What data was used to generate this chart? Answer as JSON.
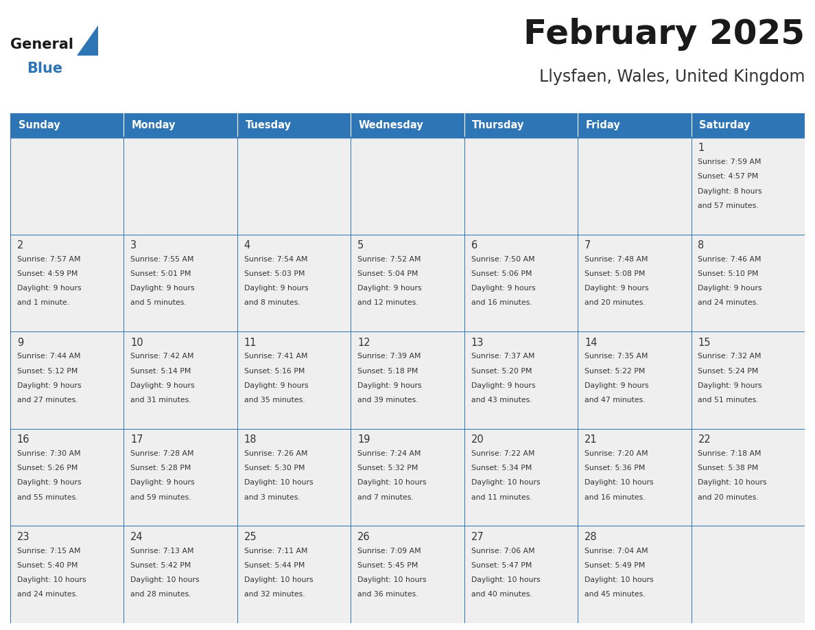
{
  "title": "February 2025",
  "subtitle": "Llysfaen, Wales, United Kingdom",
  "days_of_week": [
    "Sunday",
    "Monday",
    "Tuesday",
    "Wednesday",
    "Thursday",
    "Friday",
    "Saturday"
  ],
  "header_bg": "#2E75B6",
  "header_text": "#FFFFFF",
  "cell_bg_light": "#EFEFEF",
  "cell_bg_white": "#FFFFFF",
  "border_color": "#2E75B6",
  "text_color": "#333333",
  "title_color": "#1a1a1a",
  "subtitle_color": "#333333",
  "logo_general_color": "#1a1a1a",
  "logo_blue_color": "#2E75B6",
  "calendar_data": [
    [
      null,
      null,
      null,
      null,
      null,
      null,
      {
        "day": 1,
        "sunrise": "7:59 AM",
        "sunset": "4:57 PM",
        "daylight": "8 hours",
        "daylight2": "and 57 minutes."
      }
    ],
    [
      {
        "day": 2,
        "sunrise": "7:57 AM",
        "sunset": "4:59 PM",
        "daylight": "9 hours",
        "daylight2": "and 1 minute."
      },
      {
        "day": 3,
        "sunrise": "7:55 AM",
        "sunset": "5:01 PM",
        "daylight": "9 hours",
        "daylight2": "and 5 minutes."
      },
      {
        "day": 4,
        "sunrise": "7:54 AM",
        "sunset": "5:03 PM",
        "daylight": "9 hours",
        "daylight2": "and 8 minutes."
      },
      {
        "day": 5,
        "sunrise": "7:52 AM",
        "sunset": "5:04 PM",
        "daylight": "9 hours",
        "daylight2": "and 12 minutes."
      },
      {
        "day": 6,
        "sunrise": "7:50 AM",
        "sunset": "5:06 PM",
        "daylight": "9 hours",
        "daylight2": "and 16 minutes."
      },
      {
        "day": 7,
        "sunrise": "7:48 AM",
        "sunset": "5:08 PM",
        "daylight": "9 hours",
        "daylight2": "and 20 minutes."
      },
      {
        "day": 8,
        "sunrise": "7:46 AM",
        "sunset": "5:10 PM",
        "daylight": "9 hours",
        "daylight2": "and 24 minutes."
      }
    ],
    [
      {
        "day": 9,
        "sunrise": "7:44 AM",
        "sunset": "5:12 PM",
        "daylight": "9 hours",
        "daylight2": "and 27 minutes."
      },
      {
        "day": 10,
        "sunrise": "7:42 AM",
        "sunset": "5:14 PM",
        "daylight": "9 hours",
        "daylight2": "and 31 minutes."
      },
      {
        "day": 11,
        "sunrise": "7:41 AM",
        "sunset": "5:16 PM",
        "daylight": "9 hours",
        "daylight2": "and 35 minutes."
      },
      {
        "day": 12,
        "sunrise": "7:39 AM",
        "sunset": "5:18 PM",
        "daylight": "9 hours",
        "daylight2": "and 39 minutes."
      },
      {
        "day": 13,
        "sunrise": "7:37 AM",
        "sunset": "5:20 PM",
        "daylight": "9 hours",
        "daylight2": "and 43 minutes."
      },
      {
        "day": 14,
        "sunrise": "7:35 AM",
        "sunset": "5:22 PM",
        "daylight": "9 hours",
        "daylight2": "and 47 minutes."
      },
      {
        "day": 15,
        "sunrise": "7:32 AM",
        "sunset": "5:24 PM",
        "daylight": "9 hours",
        "daylight2": "and 51 minutes."
      }
    ],
    [
      {
        "day": 16,
        "sunrise": "7:30 AM",
        "sunset": "5:26 PM",
        "daylight": "9 hours",
        "daylight2": "and 55 minutes."
      },
      {
        "day": 17,
        "sunrise": "7:28 AM",
        "sunset": "5:28 PM",
        "daylight": "9 hours",
        "daylight2": "and 59 minutes."
      },
      {
        "day": 18,
        "sunrise": "7:26 AM",
        "sunset": "5:30 PM",
        "daylight": "10 hours",
        "daylight2": "and 3 minutes."
      },
      {
        "day": 19,
        "sunrise": "7:24 AM",
        "sunset": "5:32 PM",
        "daylight": "10 hours",
        "daylight2": "and 7 minutes."
      },
      {
        "day": 20,
        "sunrise": "7:22 AM",
        "sunset": "5:34 PM",
        "daylight": "10 hours",
        "daylight2": "and 11 minutes."
      },
      {
        "day": 21,
        "sunrise": "7:20 AM",
        "sunset": "5:36 PM",
        "daylight": "10 hours",
        "daylight2": "and 16 minutes."
      },
      {
        "day": 22,
        "sunrise": "7:18 AM",
        "sunset": "5:38 PM",
        "daylight": "10 hours",
        "daylight2": "and 20 minutes."
      }
    ],
    [
      {
        "day": 23,
        "sunrise": "7:15 AM",
        "sunset": "5:40 PM",
        "daylight": "10 hours",
        "daylight2": "and 24 minutes."
      },
      {
        "day": 24,
        "sunrise": "7:13 AM",
        "sunset": "5:42 PM",
        "daylight": "10 hours",
        "daylight2": "and 28 minutes."
      },
      {
        "day": 25,
        "sunrise": "7:11 AM",
        "sunset": "5:44 PM",
        "daylight": "10 hours",
        "daylight2": "and 32 minutes."
      },
      {
        "day": 26,
        "sunrise": "7:09 AM",
        "sunset": "5:45 PM",
        "daylight": "10 hours",
        "daylight2": "and 36 minutes."
      },
      {
        "day": 27,
        "sunrise": "7:06 AM",
        "sunset": "5:47 PM",
        "daylight": "10 hours",
        "daylight2": "and 40 minutes."
      },
      {
        "day": 28,
        "sunrise": "7:04 AM",
        "sunset": "5:49 PM",
        "daylight": "10 hours",
        "daylight2": "and 45 minutes."
      },
      null
    ]
  ],
  "figsize": [
    11.88,
    9.18
  ],
  "dpi": 100
}
